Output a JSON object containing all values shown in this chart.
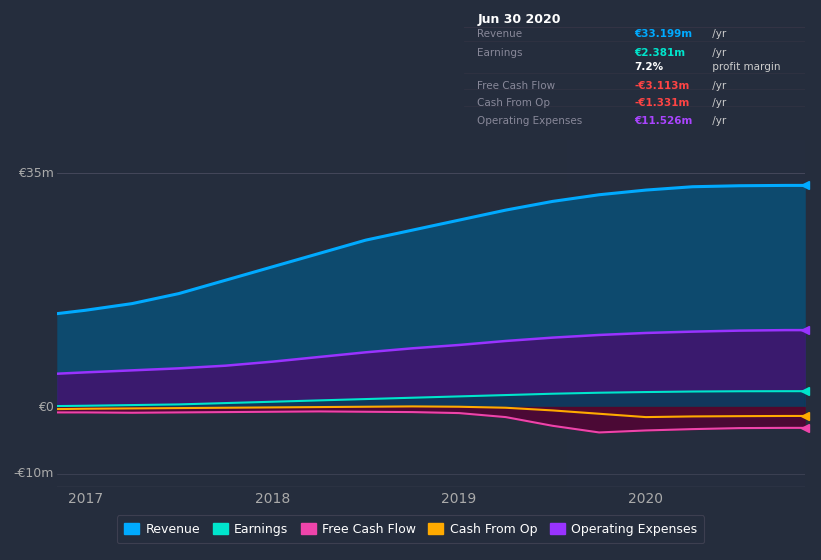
{
  "bg_color": "#252d3d",
  "plot_bg_color": "#252d3d",
  "ylim": [
    -12,
    40
  ],
  "xlim": [
    2016.85,
    2020.85
  ],
  "xticks": [
    2017,
    2018,
    2019,
    2020
  ],
  "ytick_35_label": "€35m",
  "ytick_0_label": "€0",
  "ytick_neg10_label": "-€10m",
  "series": {
    "revenue": {
      "line_color": "#00aaff",
      "fill_color": "#0d4a6e",
      "lw": 2.2,
      "x": [
        2016.85,
        2017.0,
        2017.25,
        2017.5,
        2017.75,
        2018.0,
        2018.25,
        2018.5,
        2018.75,
        2019.0,
        2019.25,
        2019.5,
        2019.75,
        2020.0,
        2020.25,
        2020.5,
        2020.75,
        2020.85
      ],
      "y": [
        14.0,
        14.5,
        15.5,
        17.0,
        19.0,
        21.0,
        23.0,
        25.0,
        26.5,
        28.0,
        29.5,
        30.8,
        31.8,
        32.5,
        33.0,
        33.15,
        33.199,
        33.199
      ]
    },
    "operating_expenses": {
      "line_color": "#9933ff",
      "fill_color": "#3a1a6e",
      "lw": 1.8,
      "x": [
        2016.85,
        2017.0,
        2017.25,
        2017.5,
        2017.75,
        2018.0,
        2018.25,
        2018.5,
        2018.75,
        2019.0,
        2019.25,
        2019.5,
        2019.75,
        2020.0,
        2020.25,
        2020.5,
        2020.75,
        2020.85
      ],
      "y": [
        5.0,
        5.2,
        5.5,
        5.8,
        6.2,
        6.8,
        7.5,
        8.2,
        8.8,
        9.3,
        9.9,
        10.4,
        10.8,
        11.1,
        11.3,
        11.45,
        11.526,
        11.526
      ]
    },
    "earnings": {
      "line_color": "#00e5cc",
      "fill_color": "#004455",
      "lw": 1.5,
      "x": [
        2016.85,
        2017.0,
        2017.25,
        2017.5,
        2017.75,
        2018.0,
        2018.25,
        2018.5,
        2018.75,
        2019.0,
        2019.25,
        2019.5,
        2019.75,
        2020.0,
        2020.25,
        2020.5,
        2020.75,
        2020.85
      ],
      "y": [
        0.15,
        0.2,
        0.3,
        0.4,
        0.6,
        0.8,
        1.0,
        1.2,
        1.4,
        1.6,
        1.8,
        2.0,
        2.15,
        2.25,
        2.33,
        2.37,
        2.381,
        2.381
      ]
    },
    "cash_from_op": {
      "line_color": "#ffaa00",
      "fill_color": "#553300",
      "lw": 1.5,
      "x": [
        2016.85,
        2017.0,
        2017.25,
        2017.5,
        2017.75,
        2018.0,
        2018.25,
        2018.5,
        2018.75,
        2019.0,
        2019.25,
        2019.5,
        2019.75,
        2020.0,
        2020.25,
        2020.5,
        2020.75,
        2020.85
      ],
      "y": [
        -0.3,
        -0.25,
        -0.2,
        -0.15,
        -0.1,
        -0.05,
        0.0,
        0.05,
        0.1,
        0.05,
        -0.1,
        -0.5,
        -1.0,
        -1.5,
        -1.4,
        -1.36,
        -1.331,
        -1.331
      ]
    },
    "free_cash_flow": {
      "line_color": "#ee44aa",
      "fill_color": "#550033",
      "lw": 1.5,
      "x": [
        2016.85,
        2017.0,
        2017.25,
        2017.5,
        2017.75,
        2018.0,
        2018.25,
        2018.5,
        2018.75,
        2019.0,
        2019.25,
        2019.5,
        2019.75,
        2020.0,
        2020.25,
        2020.5,
        2020.75,
        2020.85
      ],
      "y": [
        -0.8,
        -0.8,
        -0.85,
        -0.8,
        -0.75,
        -0.7,
        -0.65,
        -0.7,
        -0.75,
        -0.9,
        -1.5,
        -2.8,
        -3.8,
        -3.5,
        -3.3,
        -3.15,
        -3.113,
        -3.113
      ]
    }
  },
  "info_box": {
    "header": "Jun 30 2020",
    "rows": [
      {
        "label": "Revenue",
        "value": "€33.199m",
        "suffix": " /yr",
        "vc": "#00aaff"
      },
      {
        "label": "Earnings",
        "value": "€2.381m",
        "suffix": " /yr",
        "vc": "#00e5cc"
      },
      {
        "label": "",
        "value": "7.2%",
        "suffix": " profit margin",
        "vc": "#ffffff"
      },
      {
        "label": "Free Cash Flow",
        "value": "-€3.113m",
        "suffix": " /yr",
        "vc": "#ff4444"
      },
      {
        "label": "Cash From Op",
        "value": "-€1.331m",
        "suffix": " /yr",
        "vc": "#ff4444"
      },
      {
        "label": "Operating Expenses",
        "value": "€11.526m",
        "suffix": " /yr",
        "vc": "#aa44ff"
      }
    ]
  },
  "legend": [
    {
      "label": "Revenue",
      "color": "#00aaff"
    },
    {
      "label": "Earnings",
      "color": "#00e5cc"
    },
    {
      "label": "Free Cash Flow",
      "color": "#ee44aa"
    },
    {
      "label": "Cash From Op",
      "color": "#ffaa00"
    },
    {
      "label": "Operating Expenses",
      "color": "#9933ff"
    }
  ],
  "highlight_x_start": 2019.58,
  "highlight_x_end": 2020.85,
  "highlight_alpha": 0.18
}
